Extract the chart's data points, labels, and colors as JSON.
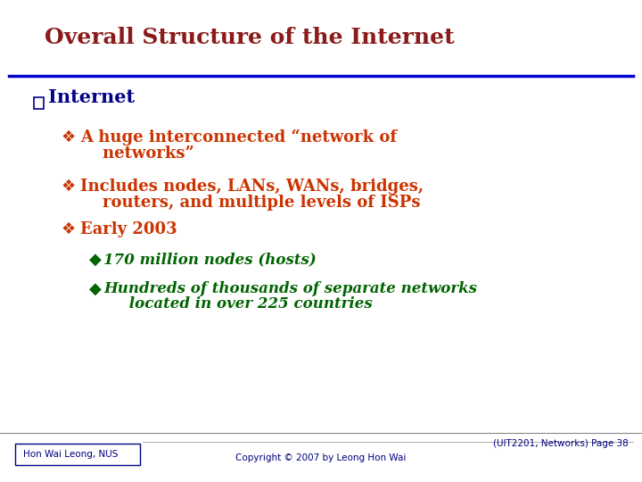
{
  "title": "Overall Structure of the Internet",
  "title_color": "#8B1A1A",
  "title_fontsize": 18,
  "line_color": "#0000CC",
  "background_color": "#FFFFFF",
  "bullet1_text": "Internet",
  "bullet1_color": "#00008B",
  "bullet1_fontsize": 15,
  "sub_bullet_marker": "❖",
  "sub_bullet_color": "#CC3300",
  "sub_bullet_fontsize": 13,
  "sub_bullets_line1": [
    "A huge interconnected “network of",
    "Includes nodes, LANs, WANs, bridges,",
    "Early 2003"
  ],
  "sub_bullets_line2": [
    "    networks”",
    "    routers, and multiple levels of ISPs",
    ""
  ],
  "sub_sub_bullet_marker": "◆",
  "sub_sub_bullet_color": "#006400",
  "sub_sub_bullet_fontsize": 12,
  "sub_sub_bullets_line1": [
    "170 million nodes (hosts)",
    "Hundreds of thousands of separate networks"
  ],
  "sub_sub_bullets_line2": [
    "",
    "     located in over 225 countries"
  ],
  "footer_left": "Hon Wai Leong, NUS",
  "footer_center": "Copyright © 2007 by Leong Hon Wai",
  "footer_right": "(UIT2201, Networks) Page 38",
  "footer_fontsize": 7.5,
  "footer_color": "#000080"
}
